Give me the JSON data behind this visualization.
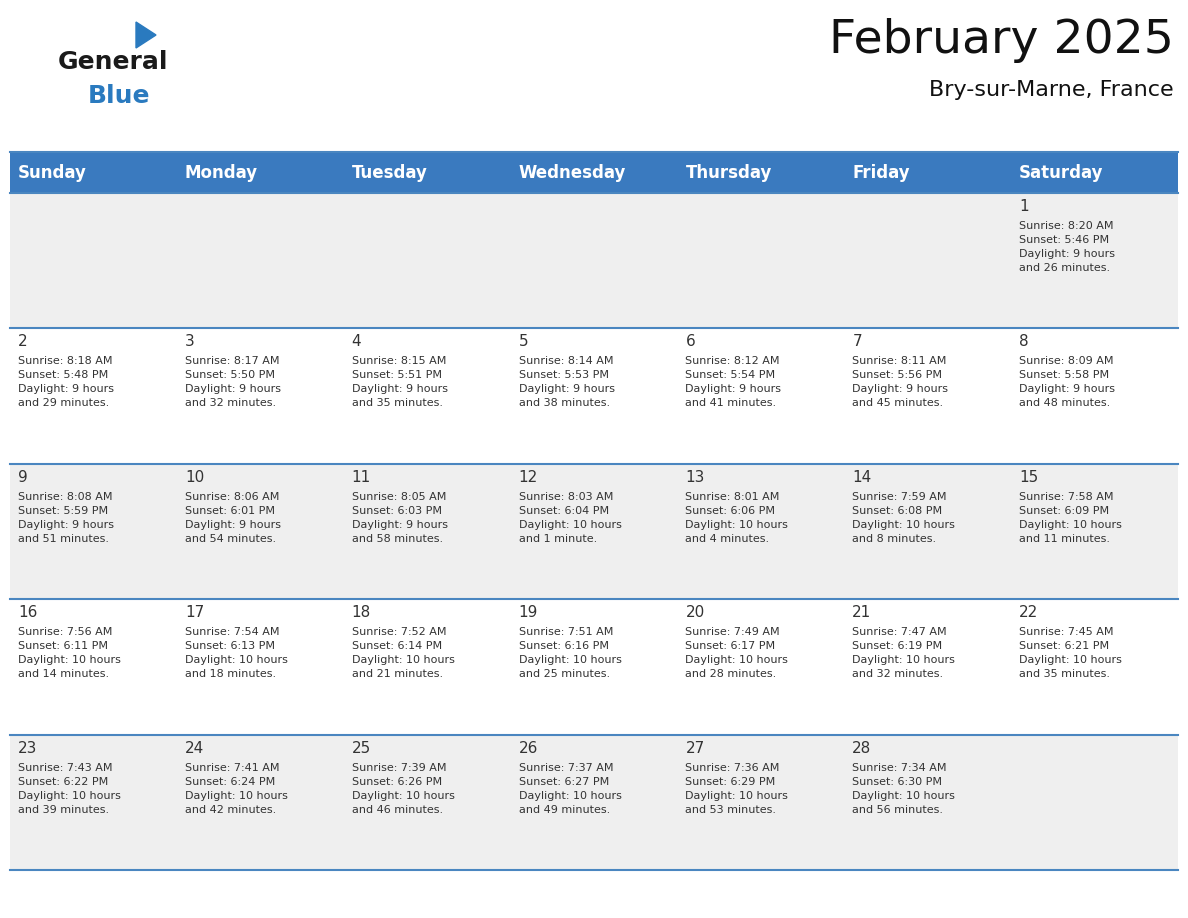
{
  "title": "February 2025",
  "subtitle": "Bry-sur-Marne, France",
  "header_color": "#3a7abf",
  "header_text_color": "#ffffff",
  "days_of_week": [
    "Sunday",
    "Monday",
    "Tuesday",
    "Wednesday",
    "Thursday",
    "Friday",
    "Saturday"
  ],
  "background_color": "#ffffff",
  "row_colors": [
    "#efefef",
    "#ffffff",
    "#efefef",
    "#ffffff",
    "#efefef"
  ],
  "cell_text_color": "#333333",
  "day_number_color": "#333333",
  "grid_color": "#4a86c0",
  "calendar_data": [
    [
      null,
      null,
      null,
      null,
      null,
      null,
      {
        "day": 1,
        "sunrise": "8:20 AM",
        "sunset": "5:46 PM",
        "daylight": "9 hours\nand 26 minutes."
      }
    ],
    [
      {
        "day": 2,
        "sunrise": "8:18 AM",
        "sunset": "5:48 PM",
        "daylight": "9 hours\nand 29 minutes."
      },
      {
        "day": 3,
        "sunrise": "8:17 AM",
        "sunset": "5:50 PM",
        "daylight": "9 hours\nand 32 minutes."
      },
      {
        "day": 4,
        "sunrise": "8:15 AM",
        "sunset": "5:51 PM",
        "daylight": "9 hours\nand 35 minutes."
      },
      {
        "day": 5,
        "sunrise": "8:14 AM",
        "sunset": "5:53 PM",
        "daylight": "9 hours\nand 38 minutes."
      },
      {
        "day": 6,
        "sunrise": "8:12 AM",
        "sunset": "5:54 PM",
        "daylight": "9 hours\nand 41 minutes."
      },
      {
        "day": 7,
        "sunrise": "8:11 AM",
        "sunset": "5:56 PM",
        "daylight": "9 hours\nand 45 minutes."
      },
      {
        "day": 8,
        "sunrise": "8:09 AM",
        "sunset": "5:58 PM",
        "daylight": "9 hours\nand 48 minutes."
      }
    ],
    [
      {
        "day": 9,
        "sunrise": "8:08 AM",
        "sunset": "5:59 PM",
        "daylight": "9 hours\nand 51 minutes."
      },
      {
        "day": 10,
        "sunrise": "8:06 AM",
        "sunset": "6:01 PM",
        "daylight": "9 hours\nand 54 minutes."
      },
      {
        "day": 11,
        "sunrise": "8:05 AM",
        "sunset": "6:03 PM",
        "daylight": "9 hours\nand 58 minutes."
      },
      {
        "day": 12,
        "sunrise": "8:03 AM",
        "sunset": "6:04 PM",
        "daylight": "10 hours\nand 1 minute."
      },
      {
        "day": 13,
        "sunrise": "8:01 AM",
        "sunset": "6:06 PM",
        "daylight": "10 hours\nand 4 minutes."
      },
      {
        "day": 14,
        "sunrise": "7:59 AM",
        "sunset": "6:08 PM",
        "daylight": "10 hours\nand 8 minutes."
      },
      {
        "day": 15,
        "sunrise": "7:58 AM",
        "sunset": "6:09 PM",
        "daylight": "10 hours\nand 11 minutes."
      }
    ],
    [
      {
        "day": 16,
        "sunrise": "7:56 AM",
        "sunset": "6:11 PM",
        "daylight": "10 hours\nand 14 minutes."
      },
      {
        "day": 17,
        "sunrise": "7:54 AM",
        "sunset": "6:13 PM",
        "daylight": "10 hours\nand 18 minutes."
      },
      {
        "day": 18,
        "sunrise": "7:52 AM",
        "sunset": "6:14 PM",
        "daylight": "10 hours\nand 21 minutes."
      },
      {
        "day": 19,
        "sunrise": "7:51 AM",
        "sunset": "6:16 PM",
        "daylight": "10 hours\nand 25 minutes."
      },
      {
        "day": 20,
        "sunrise": "7:49 AM",
        "sunset": "6:17 PM",
        "daylight": "10 hours\nand 28 minutes."
      },
      {
        "day": 21,
        "sunrise": "7:47 AM",
        "sunset": "6:19 PM",
        "daylight": "10 hours\nand 32 minutes."
      },
      {
        "day": 22,
        "sunrise": "7:45 AM",
        "sunset": "6:21 PM",
        "daylight": "10 hours\nand 35 minutes."
      }
    ],
    [
      {
        "day": 23,
        "sunrise": "7:43 AM",
        "sunset": "6:22 PM",
        "daylight": "10 hours\nand 39 minutes."
      },
      {
        "day": 24,
        "sunrise": "7:41 AM",
        "sunset": "6:24 PM",
        "daylight": "10 hours\nand 42 minutes."
      },
      {
        "day": 25,
        "sunrise": "7:39 AM",
        "sunset": "6:26 PM",
        "daylight": "10 hours\nand 46 minutes."
      },
      {
        "day": 26,
        "sunrise": "7:37 AM",
        "sunset": "6:27 PM",
        "daylight": "10 hours\nand 49 minutes."
      },
      {
        "day": 27,
        "sunrise": "7:36 AM",
        "sunset": "6:29 PM",
        "daylight": "10 hours\nand 53 minutes."
      },
      {
        "day": 28,
        "sunrise": "7:34 AM",
        "sunset": "6:30 PM",
        "daylight": "10 hours\nand 56 minutes."
      },
      null
    ]
  ],
  "logo_color_general": "#1a1a1a",
  "logo_color_blue": "#2a7abf",
  "title_fontsize": 34,
  "subtitle_fontsize": 16,
  "header_fontsize": 12,
  "day_number_fontsize": 11,
  "cell_text_fontsize": 8
}
